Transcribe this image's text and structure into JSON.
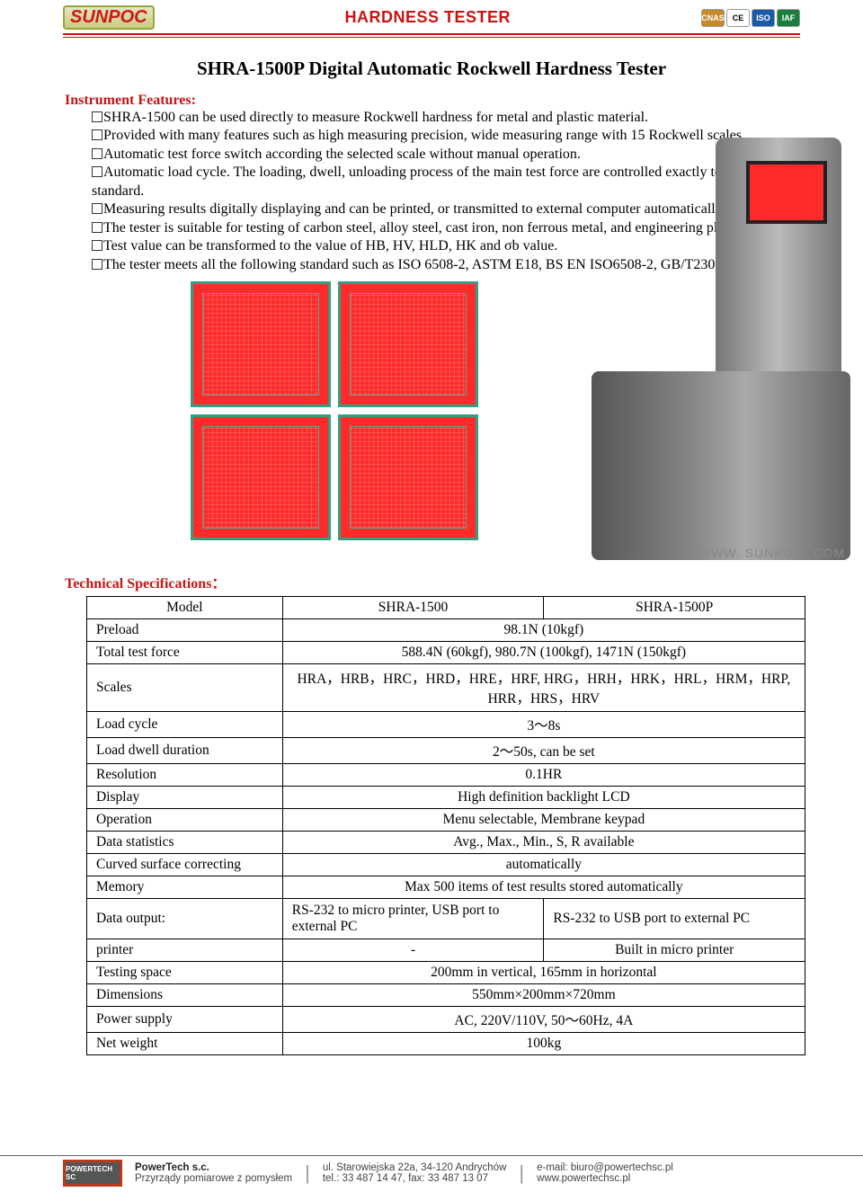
{
  "header": {
    "logo_text": "SUNPOC",
    "title": "HARDNESS TESTER",
    "badges": [
      "CNAS",
      "CE",
      "ISO",
      "IAF"
    ],
    "badge_colors": [
      "#c58a2a",
      "#ffffff",
      "#1b5aa8",
      "#1a7f3a"
    ]
  },
  "product_title": "SHRA-1500P Digital Automatic Rockwell Hardness Tester",
  "features_heading": "Instrument Features:",
  "features": [
    "SHRA-1500 can be used directly to measure Rockwell hardness for metal and plastic material.",
    "Provided with many features such as high measuring precision, wide measuring range with 15 Rockwell scales.",
    "Automatic test force switch according the selected scale without manual operation.",
    "Automatic load cycle. The loading, dwell, unloading process of the main test force are controlled exactly to meet standard.",
    "Measuring results digitally displaying and can be printed, or transmitted to external computer automatically.",
    "The tester is suitable for testing of carbon steel, alloy steel, cast iron, non ferrous metal, and engineering plastic etc.",
    "Test value can be transformed to the value of HB, HV, HLD, HK and σb value.",
    "The tester meets all the following standard such as ISO 6508-2, ASTM E18, BS EN ISO6508-2, GB/T230.2."
  ],
  "watermark": "WWW. SUNPOC. COM",
  "spec_heading": "Technical Specifications：",
  "spec": {
    "columns": [
      "Model",
      "SHRA-1500",
      "SHRA-1500P"
    ],
    "rows": [
      {
        "label": "Preload",
        "value": "98.1N (10kgf)",
        "colspan": 2
      },
      {
        "label": "Total test force",
        "value": "588.4N (60kgf), 980.7N (100kgf), 1471N (150kgf)",
        "colspan": 2
      },
      {
        "label": "Scales",
        "value": "HRA，HRB，HRC，HRD，HRE，HRF, HRG，HRH，HRK，HRL，HRM，HRP, HRR，HRS，HRV",
        "colspan": 2,
        "tall": true
      },
      {
        "label": "Load cycle",
        "value": "3～8s",
        "colspan": 2
      },
      {
        "label": "Load dwell duration",
        "value": "2～50s, can be set",
        "colspan": 2
      },
      {
        "label": "Resolution",
        "value": "0.1HR",
        "colspan": 2
      },
      {
        "label": "Display",
        "value": "High definition backlight LCD",
        "colspan": 2
      },
      {
        "label": "Operation",
        "value": "Menu selectable, Membrane keypad",
        "colspan": 2
      },
      {
        "label": "Data statistics",
        "value": "Avg., Max., Min., S, R available",
        "colspan": 2
      },
      {
        "label": "Curved surface correcting",
        "value": "automatically",
        "colspan": 2
      },
      {
        "label": "Memory",
        "value": "Max 500 items of test results stored automatically",
        "colspan": 2
      },
      {
        "label": "Data output:",
        "v1": "RS-232 to micro printer, USB port to external PC",
        "v2": "RS-232 to USB port to external PC",
        "tall": true
      },
      {
        "label": "printer",
        "v1": "-",
        "v2": "Built in micro printer"
      },
      {
        "label": "Testing space",
        "value": "200mm in vertical, 165mm in horizontal",
        "colspan": 2
      },
      {
        "label": "Dimensions",
        "value": "550mm×200mm×720mm",
        "colspan": 2
      },
      {
        "label": "Power supply",
        "value": "AC, 220V/110V, 50～60Hz, 4A",
        "colspan": 2
      },
      {
        "label": "Net weight",
        "value": "100kg",
        "colspan": 2
      }
    ]
  },
  "footer": {
    "logo": "POWERTECH SC",
    "company_name": "PowerTech s.c.",
    "company_tag": "Przyrządy pomiarowe z pomysłem",
    "addr1": "ul. Starowiejska 22a, 34-120 Andrychów",
    "addr2": "tel.: 33 487 14 47, fax: 33 487 13 07",
    "email": "e-mail: biuro@powertechsc.pl",
    "web": "www.powertechsc.pl"
  },
  "colors": {
    "brand_red": "#c81414",
    "lcd_frame": "#30a080",
    "lcd_bg": "#ff2b2b"
  }
}
